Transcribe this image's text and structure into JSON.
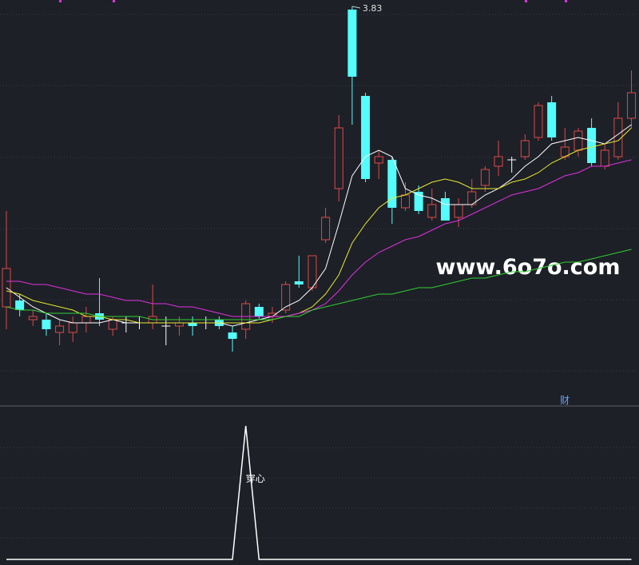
{
  "chart_data": [
    {
      "type": "candlestick",
      "watermark": "www.6o7o.com",
      "annotation": "财",
      "ylim": [
        2.65,
        3.85
      ],
      "up_color": "#e04848",
      "down_color": "#54fcfc",
      "doji_color": "#ffffff",
      "open": [
        2.89,
        2.91,
        2.85,
        2.85,
        2.81,
        2.81,
        2.84,
        2.87,
        2.82,
        2.84,
        2.84,
        2.84,
        2.83,
        2.83,
        2.84,
        2.84,
        2.85,
        2.81,
        2.82,
        2.89,
        2.86,
        2.88,
        2.97,
        2.95,
        3.1,
        3.26,
        3.82,
        3.55,
        3.34,
        3.35,
        3.2,
        3.25,
        3.17,
        3.23,
        3.17,
        3.21,
        3.27,
        3.33,
        3.35,
        3.36,
        3.42,
        3.53,
        3.36,
        3.38,
        3.45,
        3.33,
        3.36,
        3.48
      ],
      "high": [
        3.19,
        2.93,
        2.88,
        2.87,
        2.85,
        2.86,
        2.89,
        2.98,
        2.86,
        2.86,
        2.86,
        2.96,
        2.86,
        2.86,
        2.86,
        2.86,
        2.86,
        2.83,
        2.91,
        2.9,
        2.89,
        2.97,
        3.05,
        3.05,
        3.2,
        3.49,
        3.83,
        3.56,
        3.38,
        3.36,
        3.28,
        3.27,
        3.26,
        3.25,
        3.23,
        3.29,
        3.33,
        3.41,
        3.36,
        3.43,
        3.53,
        3.55,
        3.45,
        3.45,
        3.48,
        3.4,
        3.53,
        3.63
      ],
      "low": [
        2.82,
        2.86,
        2.83,
        2.8,
        2.77,
        2.78,
        2.81,
        2.83,
        2.8,
        2.81,
        2.82,
        2.82,
        2.77,
        2.8,
        2.8,
        2.82,
        2.82,
        2.75,
        2.79,
        2.85,
        2.84,
        2.87,
        2.95,
        2.94,
        3.09,
        3.22,
        3.46,
        3.28,
        3.29,
        3.15,
        3.19,
        3.18,
        3.16,
        3.16,
        3.14,
        3.2,
        3.25,
        3.3,
        3.31,
        3.35,
        3.41,
        3.41,
        3.35,
        3.36,
        3.33,
        3.32,
        3.35,
        3.45
      ],
      "close": [
        3.01,
        2.88,
        2.86,
        2.82,
        2.83,
        2.84,
        2.86,
        2.85,
        2.85,
        2.84,
        2.84,
        2.86,
        2.83,
        2.84,
        2.83,
        2.84,
        2.83,
        2.79,
        2.9,
        2.86,
        2.87,
        2.96,
        2.96,
        3.05,
        3.17,
        3.45,
        3.61,
        3.29,
        3.36,
        3.2,
        3.24,
        3.19,
        3.21,
        3.16,
        3.21,
        3.25,
        3.32,
        3.36,
        3.35,
        3.41,
        3.52,
        3.42,
        3.39,
        3.44,
        3.34,
        3.38,
        3.48,
        3.56
      ],
      "series": [
        {
          "color": "#ffffff",
          "values": [
            2.95,
            2.92,
            2.89,
            2.87,
            2.85,
            2.84,
            2.84,
            2.84,
            2.85,
            2.84,
            2.84,
            2.84,
            2.84,
            2.84,
            2.84,
            2.84,
            2.84,
            2.83,
            2.84,
            2.85,
            2.86,
            2.89,
            2.91,
            2.95,
            3.01,
            3.15,
            3.3,
            3.36,
            3.38,
            3.36,
            3.26,
            3.24,
            3.23,
            3.21,
            3.21,
            3.21,
            3.24,
            3.26,
            3.29,
            3.33,
            3.36,
            3.4,
            3.41,
            3.42,
            3.41,
            3.4,
            3.43,
            3.46
          ]
        },
        {
          "color": "#e8e830",
          "values": [
            2.94,
            2.93,
            2.91,
            2.9,
            2.89,
            2.88,
            2.86,
            2.86,
            2.85,
            2.85,
            2.84,
            2.84,
            2.84,
            2.84,
            2.84,
            2.84,
            2.84,
            2.84,
            2.84,
            2.84,
            2.85,
            2.86,
            2.87,
            2.89,
            2.93,
            2.99,
            3.09,
            3.15,
            3.2,
            3.23,
            3.24,
            3.26,
            3.28,
            3.29,
            3.28,
            3.26,
            3.26,
            3.26,
            3.28,
            3.29,
            3.31,
            3.34,
            3.36,
            3.38,
            3.39,
            3.4,
            3.41,
            3.45
          ]
        },
        {
          "color": "#e030e0",
          "values": [
            2.97,
            2.97,
            2.96,
            2.96,
            2.95,
            2.94,
            2.93,
            2.93,
            2.92,
            2.91,
            2.91,
            2.9,
            2.9,
            2.89,
            2.89,
            2.88,
            2.87,
            2.86,
            2.86,
            2.86,
            2.86,
            2.86,
            2.87,
            2.88,
            2.9,
            2.94,
            2.99,
            3.03,
            3.06,
            3.08,
            3.1,
            3.11,
            3.13,
            3.15,
            3.16,
            3.18,
            3.2,
            3.22,
            3.24,
            3.25,
            3.26,
            3.28,
            3.3,
            3.31,
            3.33,
            3.33,
            3.34,
            3.35
          ]
        },
        {
          "color": "#30d030",
          "values": [
            2.89,
            2.88,
            2.88,
            2.87,
            2.87,
            2.87,
            2.87,
            2.86,
            2.86,
            2.86,
            2.86,
            2.85,
            2.85,
            2.85,
            2.85,
            2.85,
            2.85,
            2.85,
            2.85,
            2.85,
            2.85,
            2.86,
            2.86,
            2.88,
            2.89,
            2.9,
            2.91,
            2.92,
            2.93,
            2.93,
            2.94,
            2.95,
            2.95,
            2.96,
            2.97,
            2.98,
            2.98,
            2.99,
            3.0,
            3.0,
            3.01,
            3.02,
            3.03,
            3.03,
            3.04,
            3.05,
            3.06,
            3.07
          ]
        }
      ]
    },
    {
      "type": "line",
      "annotation": "穿心",
      "ylim": [
        0,
        1.15
      ],
      "color": "#ffffff",
      "values": [
        0,
        0,
        0,
        0,
        0,
        0,
        0,
        0,
        0,
        0,
        0,
        0,
        0,
        0,
        0,
        0,
        0,
        0,
        1,
        0,
        0,
        0,
        0,
        0,
        0,
        0,
        0,
        0,
        0,
        0,
        0,
        0,
        0,
        0,
        0,
        0,
        0,
        0,
        0,
        0,
        0,
        0,
        0,
        0,
        0,
        0,
        0,
        0
      ]
    }
  ]
}
